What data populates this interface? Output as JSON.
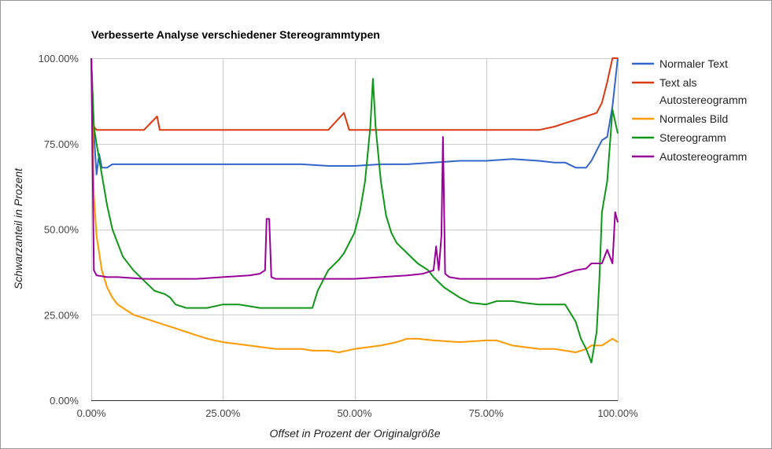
{
  "chart_data": {
    "type": "line",
    "title": "Verbesserte Analyse verschiedener Stereogrammtypen",
    "xlabel": "Offset in Prozent der Originalgröße",
    "ylabel": "Schwarzanteil in Prozent",
    "xlim": [
      0,
      100
    ],
    "ylim": [
      0,
      100
    ],
    "x_ticks": [
      "0.00%",
      "25.00%",
      "50.00%",
      "75.00%",
      "100.00%"
    ],
    "y_ticks": [
      "0.00%",
      "25.00%",
      "50.00%",
      "75.00%",
      "100.00%"
    ],
    "grid": true,
    "legend_position": "right",
    "series": [
      {
        "name": "Normaler Text",
        "color": "#3366cc",
        "points": [
          [
            0,
            100
          ],
          [
            0.5,
            78
          ],
          [
            1,
            66
          ],
          [
            1.5,
            72
          ],
          [
            2,
            68
          ],
          [
            3,
            68
          ],
          [
            4,
            69
          ],
          [
            5,
            69
          ],
          [
            7,
            69
          ],
          [
            10,
            69
          ],
          [
            15,
            69
          ],
          [
            20,
            69
          ],
          [
            25,
            69
          ],
          [
            30,
            69
          ],
          [
            35,
            69
          ],
          [
            40,
            69
          ],
          [
            45,
            68.5
          ],
          [
            50,
            68.5
          ],
          [
            55,
            69
          ],
          [
            60,
            69
          ],
          [
            65,
            69.5
          ],
          [
            70,
            70
          ],
          [
            75,
            70
          ],
          [
            80,
            70.5
          ],
          [
            85,
            70
          ],
          [
            88,
            69.5
          ],
          [
            90,
            69.5
          ],
          [
            92,
            68
          ],
          [
            94,
            68
          ],
          [
            95,
            70
          ],
          [
            96,
            73
          ],
          [
            97,
            76
          ],
          [
            98,
            77
          ],
          [
            99,
            86
          ],
          [
            100,
            100
          ]
        ]
      },
      {
        "name": "Text als Autostereogramm",
        "color": "#dc3912",
        "points": [
          [
            0,
            100
          ],
          [
            0.5,
            80
          ],
          [
            1,
            79
          ],
          [
            2,
            79
          ],
          [
            5,
            79
          ],
          [
            10,
            79
          ],
          [
            12.5,
            83
          ],
          [
            13,
            79
          ],
          [
            15,
            79
          ],
          [
            20,
            79
          ],
          [
            25,
            79
          ],
          [
            30,
            79
          ],
          [
            35,
            79
          ],
          [
            40,
            79
          ],
          [
            45,
            79
          ],
          [
            48,
            84
          ],
          [
            49,
            79
          ],
          [
            50,
            79
          ],
          [
            55,
            79
          ],
          [
            60,
            79
          ],
          [
            65,
            79
          ],
          [
            70,
            79
          ],
          [
            75,
            79
          ],
          [
            80,
            79
          ],
          [
            85,
            79
          ],
          [
            88,
            80
          ],
          [
            90,
            81
          ],
          [
            92,
            82
          ],
          [
            94,
            83
          ],
          [
            96,
            84
          ],
          [
            97,
            87
          ],
          [
            98,
            93
          ],
          [
            99,
            100
          ],
          [
            100,
            100
          ]
        ]
      },
      {
        "name": "Normales Bild",
        "color": "#ff9900",
        "points": [
          [
            0,
            100
          ],
          [
            0.5,
            60
          ],
          [
            1,
            48
          ],
          [
            2,
            38
          ],
          [
            3,
            33
          ],
          [
            4,
            30
          ],
          [
            5,
            28
          ],
          [
            6,
            27
          ],
          [
            7,
            26
          ],
          [
            8,
            25
          ],
          [
            10,
            24
          ],
          [
            12,
            23
          ],
          [
            14,
            22
          ],
          [
            16,
            21
          ],
          [
            18,
            20
          ],
          [
            20,
            19
          ],
          [
            22,
            18
          ],
          [
            25,
            17
          ],
          [
            30,
            16
          ],
          [
            35,
            15
          ],
          [
            40,
            15
          ],
          [
            42,
            14.5
          ],
          [
            45,
            14.5
          ],
          [
            47,
            14
          ],
          [
            50,
            15
          ],
          [
            55,
            16
          ],
          [
            58,
            17
          ],
          [
            60,
            18
          ],
          [
            62,
            18
          ],
          [
            65,
            17.5
          ],
          [
            70,
            17
          ],
          [
            75,
            17.5
          ],
          [
            77,
            17.5
          ],
          [
            80,
            16
          ],
          [
            85,
            15
          ],
          [
            88,
            15
          ],
          [
            90,
            14.5
          ],
          [
            92,
            14
          ],
          [
            94,
            15
          ],
          [
            95,
            16
          ],
          [
            96,
            16
          ],
          [
            97,
            16
          ],
          [
            98,
            17
          ],
          [
            99,
            18
          ],
          [
            100,
            17
          ]
        ]
      },
      {
        "name": "Stereogramm",
        "color": "#109618",
        "points": [
          [
            0,
            100
          ],
          [
            0.5,
            80
          ],
          [
            1,
            75
          ],
          [
            2,
            66
          ],
          [
            3,
            57
          ],
          [
            4,
            50
          ],
          [
            5,
            46
          ],
          [
            6,
            42
          ],
          [
            8,
            38
          ],
          [
            10,
            35
          ],
          [
            12,
            32
          ],
          [
            14,
            31
          ],
          [
            15,
            30
          ],
          [
            16,
            28
          ],
          [
            18,
            27
          ],
          [
            20,
            27
          ],
          [
            22,
            27
          ],
          [
            25,
            28
          ],
          [
            28,
            28
          ],
          [
            30,
            27.5
          ],
          [
            32,
            27
          ],
          [
            35,
            27
          ],
          [
            38,
            27
          ],
          [
            40,
            27
          ],
          [
            42,
            27
          ],
          [
            43,
            32
          ],
          [
            45,
            38
          ],
          [
            47,
            41
          ],
          [
            48,
            43
          ],
          [
            50,
            49
          ],
          [
            51,
            55
          ],
          [
            52,
            64
          ],
          [
            53,
            80
          ],
          [
            53.5,
            94
          ],
          [
            54,
            80
          ],
          [
            55,
            64
          ],
          [
            56,
            54
          ],
          [
            57,
            49
          ],
          [
            58,
            46
          ],
          [
            60,
            43
          ],
          [
            62,
            40
          ],
          [
            64,
            38
          ],
          [
            65,
            36
          ],
          [
            67,
            33
          ],
          [
            70,
            30
          ],
          [
            72,
            28.5
          ],
          [
            75,
            28
          ],
          [
            77,
            29
          ],
          [
            80,
            29
          ],
          [
            82,
            28.5
          ],
          [
            85,
            28
          ],
          [
            88,
            28
          ],
          [
            90,
            28
          ],
          [
            92,
            23
          ],
          [
            93,
            18
          ],
          [
            94,
            15
          ],
          [
            95,
            11
          ],
          [
            96,
            20
          ],
          [
            96.5,
            35
          ],
          [
            97,
            55
          ],
          [
            98,
            64
          ],
          [
            99,
            85
          ],
          [
            100,
            78
          ]
        ]
      },
      {
        "name": "Autostereogramm",
        "color": "#990099",
        "points": [
          [
            0,
            100
          ],
          [
            0.5,
            38
          ],
          [
            1,
            36.5
          ],
          [
            3,
            36
          ],
          [
            5,
            36
          ],
          [
            10,
            35.5
          ],
          [
            15,
            35.5
          ],
          [
            20,
            35.5
          ],
          [
            25,
            36
          ],
          [
            30,
            36.5
          ],
          [
            32,
            37
          ],
          [
            33,
            38
          ],
          [
            33.3,
            53
          ],
          [
            33.8,
            53
          ],
          [
            34.2,
            36
          ],
          [
            35,
            35.5
          ],
          [
            40,
            35.5
          ],
          [
            45,
            35.5
          ],
          [
            50,
            35.5
          ],
          [
            55,
            36
          ],
          [
            60,
            36.5
          ],
          [
            63,
            37
          ],
          [
            65,
            38
          ],
          [
            65.5,
            45
          ],
          [
            66,
            38
          ],
          [
            66.5,
            48
          ],
          [
            66.8,
            77
          ],
          [
            67.2,
            37
          ],
          [
            68,
            36
          ],
          [
            70,
            35.5
          ],
          [
            75,
            35.5
          ],
          [
            80,
            35.5
          ],
          [
            85,
            35.5
          ],
          [
            88,
            36
          ],
          [
            90,
            37
          ],
          [
            92,
            38
          ],
          [
            94,
            38.5
          ],
          [
            95,
            40
          ],
          [
            96,
            40
          ],
          [
            97,
            40
          ],
          [
            98,
            44
          ],
          [
            99,
            40
          ],
          [
            99.5,
            55
          ],
          [
            100,
            52
          ]
        ]
      }
    ]
  }
}
